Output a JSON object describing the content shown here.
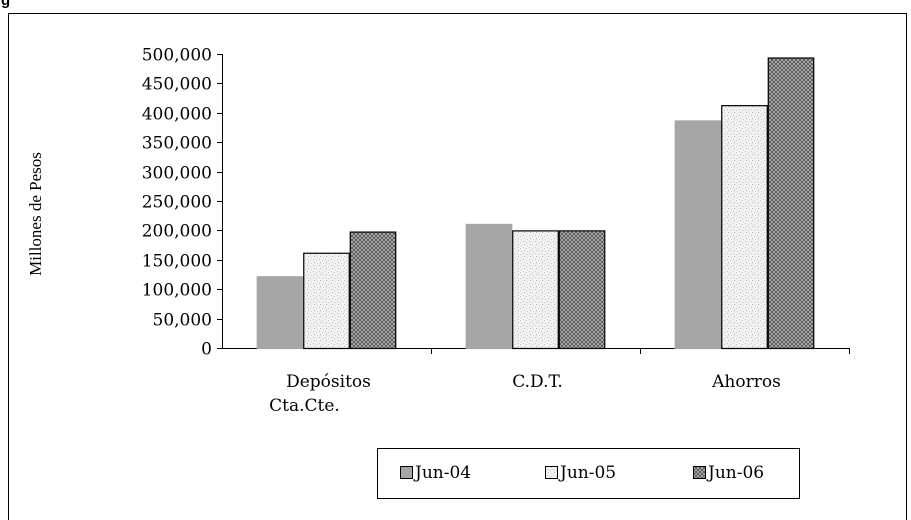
{
  "header_fragment": "g",
  "chart_data": {
    "type": "bar",
    "title": "",
    "ylabel": "Millones de Pesos",
    "xlabel": "",
    "ylim": [
      0,
      500000
    ],
    "yticks": [
      0,
      50000,
      100000,
      150000,
      200000,
      250000,
      300000,
      350000,
      400000,
      450000,
      500000
    ],
    "ytick_labels": [
      "0",
      "50,000",
      "100,000",
      "150,000",
      "200,000",
      "250,000",
      "300,000",
      "350,000",
      "400,000",
      "450,000",
      "500,000"
    ],
    "categories": [
      [
        "Depósitos",
        "Cta.Cte."
      ],
      [
        "C.D.T."
      ],
      [
        "Ahorros"
      ]
    ],
    "series": [
      {
        "name": "Jun-04",
        "values": [
          122000,
          211000,
          387000
        ],
        "pattern": "solid-gray"
      },
      {
        "name": "Jun-05",
        "values": [
          162000,
          200000,
          413000
        ],
        "pattern": "light-speckle"
      },
      {
        "name": "Jun-06",
        "values": [
          198000,
          200000,
          494000
        ],
        "pattern": "dark-crosshatch"
      }
    ],
    "legend_position": "bottom-center",
    "grid": false,
    "colors": {
      "Jun-04": "#a6a6a6",
      "Jun-05": "#ececec",
      "Jun-06": "#8c8c8c",
      "frame": "#000000"
    }
  }
}
